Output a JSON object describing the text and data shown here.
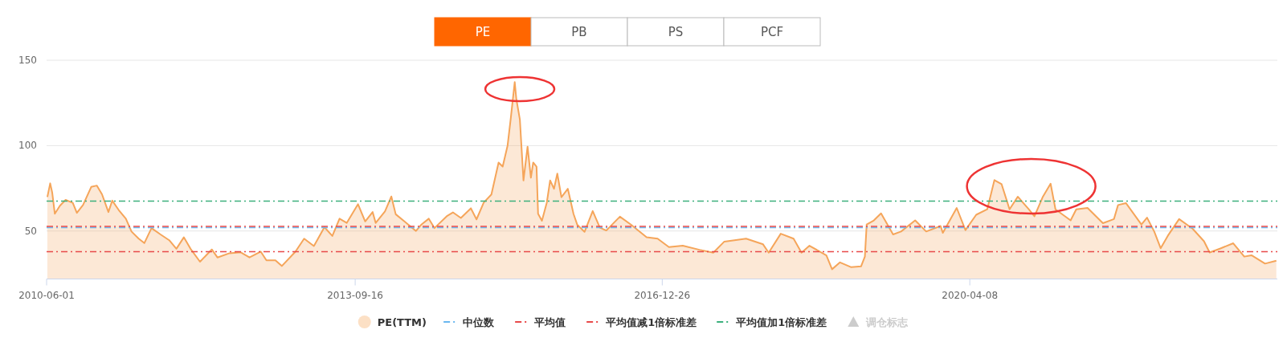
{
  "chart_data": {
    "type": "area",
    "x": [
      "2010-06-04",
      "2010-06-15",
      "2010-06-23",
      "2010-07-03",
      "2010-07-23",
      "2010-08-14",
      "2010-09-11",
      "2010-09-27",
      "2010-10-21",
      "2010-11-22",
      "2010-12-14",
      "2011-01-03",
      "2011-01-28",
      "2011-02-12",
      "2011-03-09",
      "2011-04-06",
      "2011-04-28",
      "2011-05-26",
      "2011-06-17",
      "2011-07-15",
      "2011-08-19",
      "2011-09-22",
      "2011-10-20",
      "2011-11-18",
      "2011-12-14",
      "2012-01-20",
      "2012-03-06",
      "2012-03-28",
      "2012-05-14",
      "2012-06-27",
      "2012-07-31",
      "2012-09-13",
      "2012-10-05",
      "2012-11-09",
      "2012-12-04",
      "2013-01-26",
      "2013-03-01",
      "2013-04-08",
      "2013-05-19",
      "2013-06-19",
      "2013-07-17",
      "2013-08-14",
      "2013-09-27",
      "2013-10-25",
      "2013-11-23",
      "2013-12-05",
      "2014-01-10",
      "2014-02-04",
      "2014-02-21",
      "2014-03-27",
      "2014-05-11",
      "2014-06-02",
      "2014-06-30",
      "2014-07-22",
      "2014-09-10",
      "2014-10-02",
      "2014-11-02",
      "2014-12-11",
      "2015-01-02",
      "2015-01-30",
      "2015-03-01",
      "2015-03-29",
      "2015-04-14",
      "2015-05-03",
      "2015-05-15",
      "2015-05-31",
      "2015-06-06",
      "2015-06-20",
      "2015-07-04",
      "2015-07-20",
      "2015-08-02",
      "2015-08-11",
      "2015-08-24",
      "2015-08-30",
      "2015-09-14",
      "2015-10-03",
      "2015-10-16",
      "2015-10-31",
      "2015-11-13",
      "2015-11-29",
      "2015-12-24",
      "2016-01-15",
      "2016-01-30",
      "2016-02-27",
      "2016-03-30",
      "2016-04-27",
      "2016-05-22",
      "2016-07-14",
      "2016-08-27",
      "2016-10-26",
      "2016-12-08",
      "2017-01-21",
      "2017-03-16",
      "2017-05-20",
      "2017-07-13",
      "2017-08-25",
      "2017-11-18",
      "2018-01-23",
      "2018-02-14",
      "2018-04-02",
      "2018-05-22",
      "2018-06-22",
      "2018-07-23",
      "2018-09-27",
      "2018-10-19",
      "2018-11-19",
      "2019-01-02",
      "2019-02-09",
      "2019-02-24",
      "2019-03-03",
      "2019-03-31",
      "2019-04-28",
      "2019-06-14",
      "2019-07-15",
      "2019-09-08",
      "2019-10-21",
      "2019-12-16",
      "2019-12-25",
      "2020-02-17",
      "2020-03-22",
      "2020-05-03",
      "2020-06-15",
      "2020-07-13",
      "2020-08-10",
      "2020-09-10",
      "2020-10-12",
      "2020-11-24",
      "2020-12-16",
      "2021-01-18",
      "2021-02-17",
      "2021-03-08",
      "2021-05-06",
      "2021-05-28",
      "2021-07-11",
      "2021-09-09",
      "2021-10-22",
      "2021-11-07",
      "2021-12-08",
      "2022-02-06",
      "2022-02-28",
      "2022-03-28",
      "2022-04-22",
      "2022-05-20",
      "2022-07-03",
      "2022-08-25",
      "2022-10-08",
      "2022-10-30",
      "2022-12-13",
      "2023-01-30",
      "2023-03-14",
      "2023-04-11",
      "2023-06-03",
      "2023-07-17"
    ],
    "series": [
      {
        "name": "PE(TTM)",
        "color": "#f5a55a",
        "values": [
          69.9,
          77.9,
          72.4,
          60.1,
          64.8,
          68.2,
          66.5,
          60.6,
          65.2,
          75.8,
          76.6,
          71.5,
          61.1,
          67.8,
          62.3,
          57.2,
          49.7,
          45.5,
          42.9,
          51.7,
          48,
          44.6,
          39.6,
          46.3,
          39.6,
          32,
          39.2,
          34.5,
          37,
          37.5,
          34.5,
          37.9,
          32.8,
          32.8,
          29.5,
          37.9,
          45.5,
          41.2,
          52.2,
          47.1,
          57.2,
          54.7,
          65.7,
          55.6,
          61.1,
          54.7,
          61.4,
          70.2,
          59.8,
          55.6,
          50,
          53.9,
          57.2,
          51.7,
          58.9,
          60.9,
          57.6,
          63.3,
          56.8,
          66.6,
          71.4,
          90.1,
          87.7,
          99.9,
          115.3,
          137.2,
          127.5,
          115.3,
          79.6,
          99.4,
          81.2,
          90.1,
          87.7,
          60.1,
          56,
          66.6,
          79.6,
          74.7,
          83.6,
          69.8,
          74.7,
          60.1,
          53.6,
          49.5,
          61.7,
          51.9,
          50.3,
          58.4,
          53.6,
          46.3,
          45.5,
          40.6,
          41.4,
          39,
          37.3,
          43.8,
          45.5,
          42.2,
          37.3,
          48.4,
          45.5,
          37.3,
          41.4,
          35.7,
          27.6,
          31.6,
          28.8,
          29.3,
          35,
          53.8,
          56.2,
          60.3,
          48,
          49.7,
          56.2,
          49.7,
          52.9,
          48.9,
          63.5,
          50.5,
          59.5,
          62.7,
          79.8,
          77.4,
          62.7,
          70.1,
          62.7,
          58.6,
          70.1,
          77.7,
          62.7,
          56.2,
          62.7,
          63.5,
          54.6,
          57,
          65.2,
          66.3,
          53.8,
          57.8,
          49.7,
          39.9,
          47.2,
          57,
          51.3,
          44,
          37.4,
          39.9,
          42.8,
          35,
          35.8,
          30.9,
          32.6
        ]
      }
    ],
    "xlim": [
      "2010-06-01",
      "2023-07-21"
    ],
    "xticks": [
      "2010-06-01",
      "2013-09-16",
      "2016-12-26",
      "2020-04-08"
    ],
    "ylim": [
      21.9,
      150
    ],
    "yticks": [
      50,
      100,
      150
    ],
    "grid": "y",
    "legend": "bottom",
    "marker": "none",
    "ref_lines": [
      {
        "axis": "y",
        "value": 52,
        "label": "中位数",
        "color": "#6ab7f0",
        "line_style": "dashdot"
      },
      {
        "axis": "y",
        "value": 52.7,
        "label": "平均值",
        "color": "#e84a4a",
        "line_style": "dashdot"
      },
      {
        "axis": "y",
        "value": 37.9,
        "label": "平均值减1倍标准差",
        "color": "#e84a4a",
        "line_style": "dashdot"
      },
      {
        "axis": "y",
        "value": 67.5,
        "label": "平均值加1倍标准差",
        "color": "#3cb07d",
        "line_style": "dashdot"
      }
    ],
    "annotations": [
      "PE",
      "PB",
      "PS",
      "PCF",
      "调仓标志"
    ]
  }
}
